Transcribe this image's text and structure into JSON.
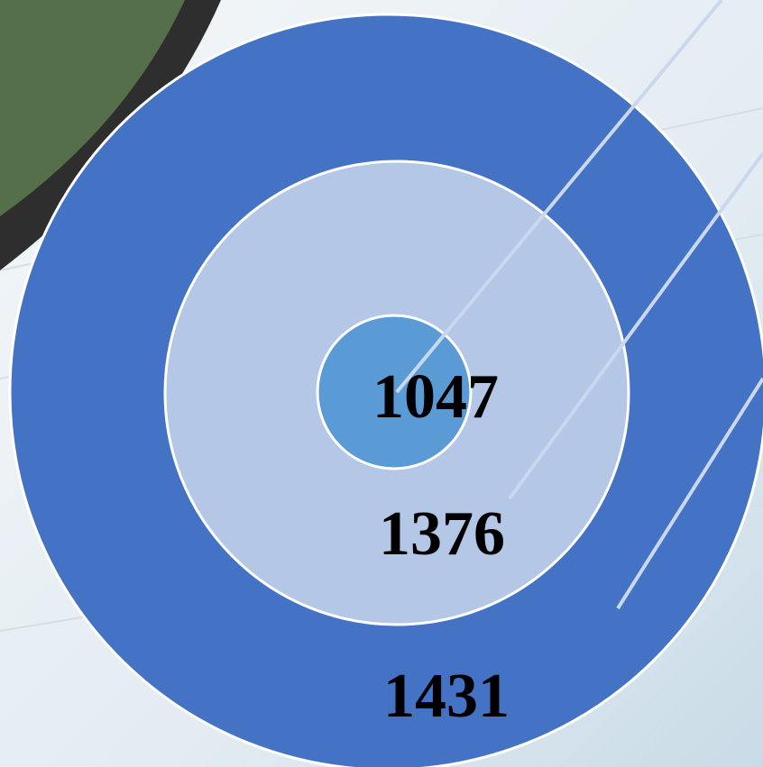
{
  "circles": [
    {
      "label": 1431
    },
    {
      "label": 1376
    },
    {
      "label": 1047
    }
  ]
}
